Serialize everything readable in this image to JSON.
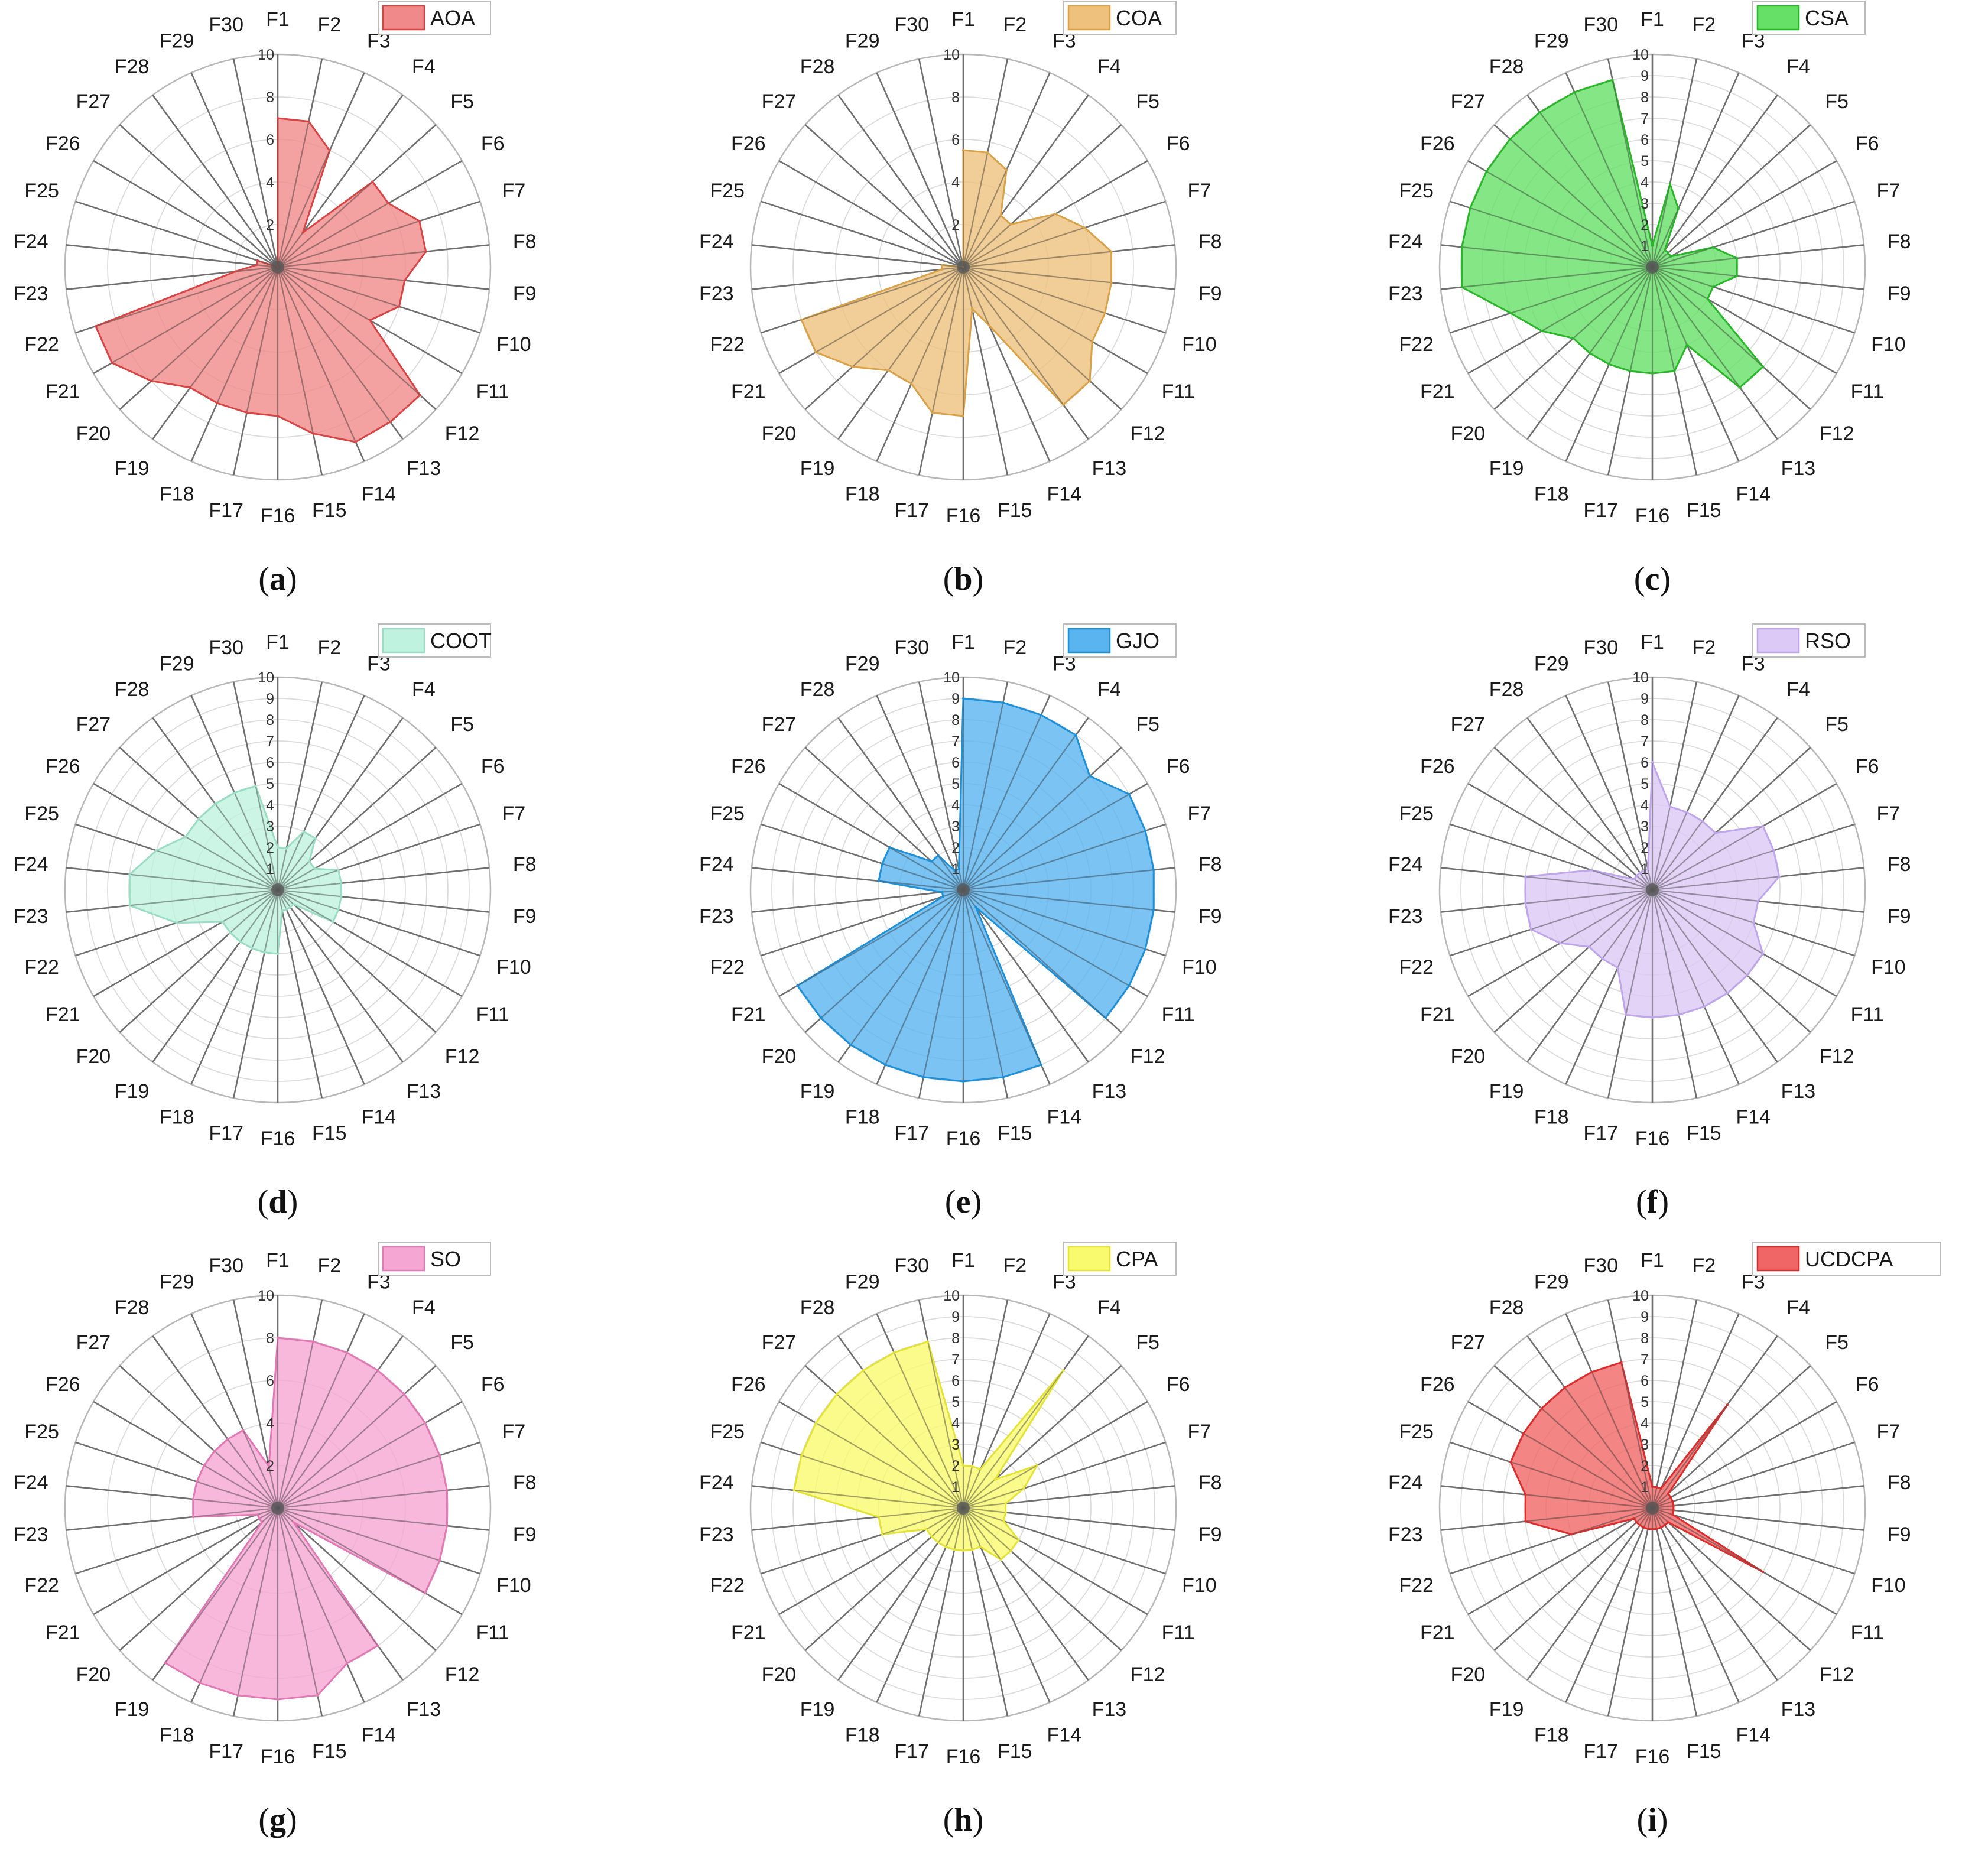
{
  "chart_data": [
    {
      "type": "radar",
      "panel": "a",
      "caption": "(a)",
      "series_name": "AOA",
      "color": "#f08a8a",
      "stroke": "#d64545",
      "categories": [
        "F1",
        "F2",
        "F3",
        "F4",
        "F5",
        "F6",
        "F7",
        "F8",
        "F9",
        "F10",
        "F11",
        "F12",
        "F13",
        "F14",
        "F15",
        "F16",
        "F17",
        "F18",
        "F19",
        "F20",
        "F21",
        "F22",
        "F23",
        "F24",
        "F25",
        "F26",
        "F27",
        "F28",
        "F29",
        "F30"
      ],
      "values": [
        7,
        7,
        6,
        2,
        6,
        6,
        7,
        7,
        6,
        6,
        5,
        9,
        9,
        9,
        8,
        7,
        7,
        7,
        7,
        8,
        9,
        9,
        2,
        1,
        1,
        0,
        0,
        0,
        0,
        0
      ],
      "rmax": 10,
      "ticks": [
        2,
        4,
        6,
        8,
        10
      ]
    },
    {
      "type": "radar",
      "panel": "b",
      "caption": "(b)",
      "series_name": "COA",
      "color": "#eec27d",
      "stroke": "#d8a24a",
      "categories": [
        "F1",
        "F2",
        "F3",
        "F4",
        "F5",
        "F6",
        "F7",
        "F8",
        "F9",
        "F10",
        "F11",
        "F12",
        "F13",
        "F14",
        "F15",
        "F16",
        "F17",
        "F18",
        "F19",
        "F20",
        "F21",
        "F22",
        "F23",
        "F24",
        "F25",
        "F26",
        "F27",
        "F28",
        "F29",
        "F30"
      ],
      "values": [
        5.5,
        5.5,
        5,
        3,
        3,
        5,
        6,
        7,
        7,
        7,
        7,
        8,
        8,
        3,
        2,
        7,
        7,
        6,
        6,
        7,
        8,
        8,
        1,
        1,
        0,
        0,
        0,
        0,
        0,
        0
      ],
      "rmax": 10,
      "ticks": [
        2,
        4,
        6,
        8,
        10
      ]
    },
    {
      "type": "radar",
      "panel": "c",
      "caption": "(c)",
      "series_name": "CSA",
      "color": "#66e066",
      "stroke": "#2bb52b",
      "categories": [
        "F1",
        "F2",
        "F3",
        "F4",
        "F5",
        "F6",
        "F7",
        "F8",
        "F9",
        "F10",
        "F11",
        "F12",
        "F13",
        "F14",
        "F15",
        "F16",
        "F17",
        "F18",
        "F19",
        "F20",
        "F21",
        "F22",
        "F23",
        "F24",
        "F25",
        "F26",
        "F27",
        "F28",
        "F29",
        "F30"
      ],
      "values": [
        1,
        4,
        3,
        1,
        1,
        1,
        3,
        4,
        4,
        3,
        3,
        7,
        7,
        4,
        5,
        5,
        5,
        5,
        5,
        5,
        6,
        7,
        9,
        9,
        9,
        9,
        9,
        9,
        9,
        9
      ],
      "rmax": 10,
      "ticks": [
        1,
        2,
        3,
        4,
        5,
        6,
        7,
        8,
        9,
        10
      ]
    },
    {
      "type": "radar",
      "panel": "d",
      "caption": "(d)",
      "series_name": "COOT",
      "color": "#bff2df",
      "stroke": "#9adcc4",
      "categories": [
        "F1",
        "F2",
        "F3",
        "F4",
        "F5",
        "F6",
        "F7",
        "F8",
        "F9",
        "F10",
        "F11",
        "F12",
        "F13",
        "F14",
        "F15",
        "F16",
        "F17",
        "F18",
        "F19",
        "F20",
        "F21",
        "F22",
        "F23",
        "F24",
        "F25",
        "F26",
        "F27",
        "F28",
        "F29",
        "F30"
      ],
      "values": [
        2,
        2,
        3,
        3,
        2,
        2,
        3,
        3,
        3,
        3,
        3,
        1,
        1,
        1,
        1,
        3,
        3,
        3,
        3,
        3,
        3,
        5,
        7,
        7,
        6,
        5,
        5,
        5,
        5,
        5
      ],
      "rmax": 10,
      "ticks": [
        1,
        2,
        3,
        4,
        5,
        6,
        7,
        8,
        9,
        10
      ]
    },
    {
      "type": "radar",
      "panel": "e",
      "caption": "(e)",
      "series_name": "GJO",
      "color": "#5ab4f0",
      "stroke": "#1f8fd6",
      "categories": [
        "F1",
        "F2",
        "F3",
        "F4",
        "F5",
        "F6",
        "F7",
        "F8",
        "F9",
        "F10",
        "F11",
        "F12",
        "F13",
        "F14",
        "F15",
        "F16",
        "F17",
        "F18",
        "F19",
        "F20",
        "F21",
        "F22",
        "F23",
        "F24",
        "F25",
        "F26",
        "F27",
        "F28",
        "F29",
        "F30"
      ],
      "values": [
        9,
        9,
        9,
        9,
        8,
        9,
        9,
        9,
        9,
        9,
        9,
        9,
        1,
        9,
        9,
        9,
        9,
        9,
        9,
        9,
        9,
        1,
        1,
        4,
        4,
        4,
        2,
        2,
        1,
        1
      ],
      "rmax": 10,
      "ticks": [
        1,
        2,
        3,
        4,
        5,
        6,
        7,
        8,
        9,
        10
      ]
    },
    {
      "type": "radar",
      "panel": "f",
      "caption": "(f)",
      "series_name": "RSO",
      "color": "#dcc9f5",
      "stroke": "#bfa6ea",
      "categories": [
        "F1",
        "F2",
        "F3",
        "F4",
        "F5",
        "F6",
        "F7",
        "F8",
        "F9",
        "F10",
        "F11",
        "F12",
        "F13",
        "F14",
        "F15",
        "F16",
        "F17",
        "F18",
        "F19",
        "F20",
        "F21",
        "F22",
        "F23",
        "F24",
        "F25",
        "F26",
        "F27",
        "F28",
        "F29",
        "F30"
      ],
      "values": [
        6,
        4,
        4,
        4,
        4,
        6,
        6,
        6,
        5,
        5,
        6,
        6,
        6,
        6,
        6,
        6,
        6,
        4,
        4,
        4,
        5,
        6,
        6,
        6,
        3,
        1,
        1,
        1,
        1,
        1
      ],
      "rmax": 10,
      "ticks": [
        1,
        2,
        3,
        4,
        5,
        6,
        7,
        8,
        9,
        10
      ]
    },
    {
      "type": "radar",
      "panel": "g",
      "caption": "(g)",
      "series_name": "SO",
      "color": "#f5a6d3",
      "stroke": "#e079b4",
      "categories": [
        "F1",
        "F2",
        "F3",
        "F4",
        "F5",
        "F6",
        "F7",
        "F8",
        "F9",
        "F10",
        "F11",
        "F12",
        "F13",
        "F14",
        "F15",
        "F16",
        "F17",
        "F18",
        "F19",
        "F20",
        "F21",
        "F22",
        "F23",
        "F24",
        "F25",
        "F26",
        "F27",
        "F28",
        "F29",
        "F30"
      ],
      "values": [
        8,
        8,
        8,
        8,
        8,
        8,
        8,
        8,
        8,
        8,
        8,
        1,
        8,
        8,
        9,
        9,
        9,
        9,
        9,
        1,
        1,
        1,
        4,
        4,
        4,
        4,
        4,
        4,
        4,
        2
      ],
      "rmax": 10,
      "ticks": [
        2,
        4,
        6,
        8,
        10
      ]
    },
    {
      "type": "radar",
      "panel": "h",
      "caption": "(h)",
      "series_name": "CPA",
      "color": "#fafa6e",
      "stroke": "#e2e23a",
      "categories": [
        "F1",
        "F2",
        "F3",
        "F4",
        "F5",
        "F6",
        "F7",
        "F8",
        "F9",
        "F10",
        "F11",
        "F12",
        "F13",
        "F14",
        "F15",
        "F16",
        "F17",
        "F18",
        "F19",
        "F20",
        "F21",
        "F22",
        "F23",
        "F24",
        "F25",
        "F26",
        "F27",
        "F28",
        "F29",
        "F30"
      ],
      "values": [
        2,
        2,
        2,
        8,
        2,
        4,
        3,
        2,
        2,
        2,
        3,
        3,
        3,
        2,
        2,
        2,
        2,
        2,
        2,
        2,
        2,
        4,
        4,
        8,
        8,
        8,
        8,
        8,
        8,
        8
      ],
      "rmax": 10,
      "ticks": [
        1,
        2,
        3,
        4,
        5,
        6,
        7,
        8,
        9,
        10
      ]
    },
    {
      "type": "radar",
      "panel": "i",
      "caption": "(i)",
      "series_name": "UCDCPA",
      "color": "#f06666",
      "stroke": "#d92e2e",
      "categories": [
        "F1",
        "F2",
        "F3",
        "F4",
        "F5",
        "F6",
        "F7",
        "F8",
        "F9",
        "F10",
        "F11",
        "F12",
        "F13",
        "F14",
        "F15",
        "F16",
        "F17",
        "F18",
        "F19",
        "F20",
        "F21",
        "F22",
        "F23",
        "F24",
        "F25",
        "F26",
        "F27",
        "F28",
        "F29",
        "F30"
      ],
      "values": [
        1,
        1,
        1,
        6,
        1,
        1,
        1,
        1,
        1,
        1,
        6,
        1,
        1,
        1,
        1,
        1,
        1,
        1,
        1,
        1,
        1,
        4,
        6,
        6,
        7,
        7,
        7,
        7,
        7,
        7
      ],
      "rmax": 10,
      "ticks": [
        1,
        2,
        3,
        4,
        5,
        6,
        7,
        8,
        9,
        10
      ]
    }
  ]
}
